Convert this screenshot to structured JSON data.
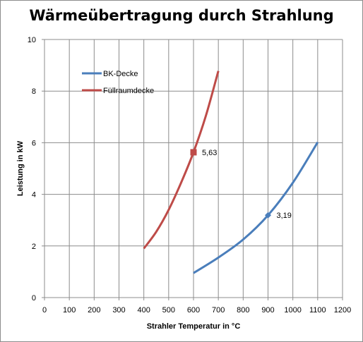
{
  "chart_data": {
    "type": "line",
    "title": "Wärmeübertragung durch Strahlung",
    "xlabel": "Strahler Temperatur in °C",
    "ylabel": "Leistung in kW",
    "xlim": [
      0,
      1200
    ],
    "ylim": [
      0,
      10
    ],
    "x_ticks": [
      0,
      100,
      200,
      300,
      400,
      500,
      600,
      700,
      800,
      900,
      1000,
      1100,
      1200
    ],
    "y_ticks": [
      0,
      2,
      4,
      6,
      8,
      10
    ],
    "x_tick_labels": [
      "0",
      "100",
      "200",
      "300",
      "400",
      "500",
      "600",
      "700",
      "800",
      "900",
      "1000",
      "1100",
      "1200"
    ],
    "y_tick_labels": [
      "0",
      "2",
      "4",
      "6",
      "8",
      "10"
    ],
    "grid": true,
    "legend_position": "top-left",
    "series": [
      {
        "name": "BK-Decke",
        "color": "#4a7ebb",
        "x": [
          600,
          700,
          800,
          900,
          1000,
          1100
        ],
        "y": [
          0.95,
          1.55,
          2.25,
          3.19,
          4.45,
          6.02
        ],
        "marker": {
          "x": 900,
          "y": 3.19,
          "label": "3,19",
          "shape": "diamond"
        }
      },
      {
        "name": "Füllraumdecke",
        "color": "#be4b48",
        "x": [
          400,
          450,
          500,
          550,
          600,
          650,
          700
        ],
        "y": [
          1.9,
          2.55,
          3.4,
          4.45,
          5.63,
          7.05,
          8.78
        ],
        "marker": {
          "x": 600,
          "y": 5.63,
          "label": "5,63",
          "shape": "square"
        }
      }
    ]
  }
}
